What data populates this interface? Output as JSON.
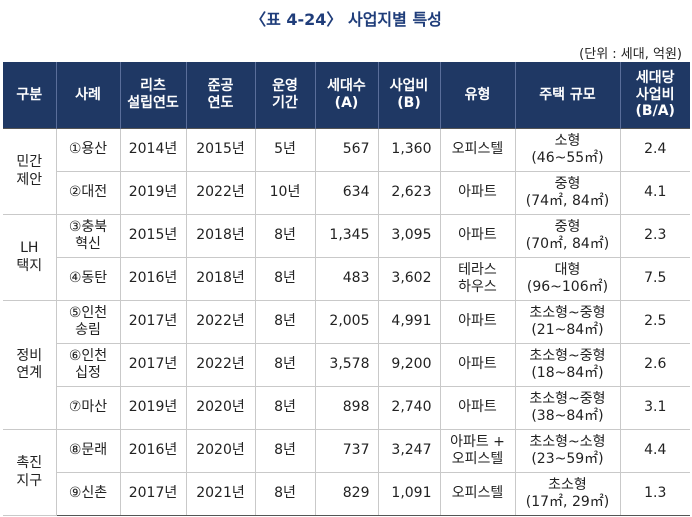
{
  "header": {
    "title": "〈표 4-24〉 사업지별 특성",
    "unit": "(단위 : 세대, 억원)"
  },
  "table": {
    "columns": [
      "구분",
      "사례",
      "리츠\n설립연도",
      "준공\n연도",
      "운영\n기간",
      "세대수\n(A)",
      "사업비\n(B)",
      "유형",
      "주택 규모",
      "세대당\n사업비\n(B/A)"
    ],
    "groups": [
      {
        "name": "민간\n제안",
        "rows": [
          [
            "①용산",
            "2014년",
            "2015년",
            "5년",
            "567",
            "1,360",
            "오피스텔",
            "소형\n(46~55㎡)",
            "2.4"
          ],
          [
            "②대전",
            "2019년",
            "2022년",
            "10년",
            "634",
            "2,623",
            "아파트",
            "중형\n(74㎡, 84㎡)",
            "4.1"
          ]
        ]
      },
      {
        "name": "LH\n택지",
        "rows": [
          [
            "③충북\n혁신",
            "2015년",
            "2018년",
            "8년",
            "1,345",
            "3,095",
            "아파트",
            "중형\n(70㎡, 84㎡)",
            "2.3"
          ],
          [
            "④동탄",
            "2016년",
            "2018년",
            "8년",
            "483",
            "3,602",
            "테라스\n하우스",
            "대형\n(96~106㎡)",
            "7.5"
          ]
        ]
      },
      {
        "name": "정비\n연계",
        "rows": [
          [
            "⑤인천\n송림",
            "2017년",
            "2022년",
            "8년",
            "2,005",
            "4,991",
            "아파트",
            "초소형~중형\n(21~84㎡)",
            "2.5"
          ],
          [
            "⑥인천\n십정",
            "2017년",
            "2022년",
            "8년",
            "3,578",
            "9,200",
            "아파트",
            "초소형~중형\n(18~84㎡)",
            "2.6"
          ],
          [
            "⑦마산",
            "2019년",
            "2020년",
            "8년",
            "898",
            "2,740",
            "아파트",
            "초소형~중형\n(38~84㎡)",
            "3.1"
          ]
        ]
      },
      {
        "name": "촉진\n지구",
        "rows": [
          [
            "⑧문래",
            "2016년",
            "2020년",
            "8년",
            "737",
            "3,247",
            "아파트 +\n오피스텔",
            "초소형~소형\n(23~59㎡)",
            "4.4"
          ],
          [
            "⑨신촌",
            "2017년",
            "2021년",
            "8년",
            "829",
            "1,091",
            "오피스텔",
            "초소형\n(17㎡, 29㎡)",
            "1.3"
          ]
        ]
      }
    ]
  }
}
